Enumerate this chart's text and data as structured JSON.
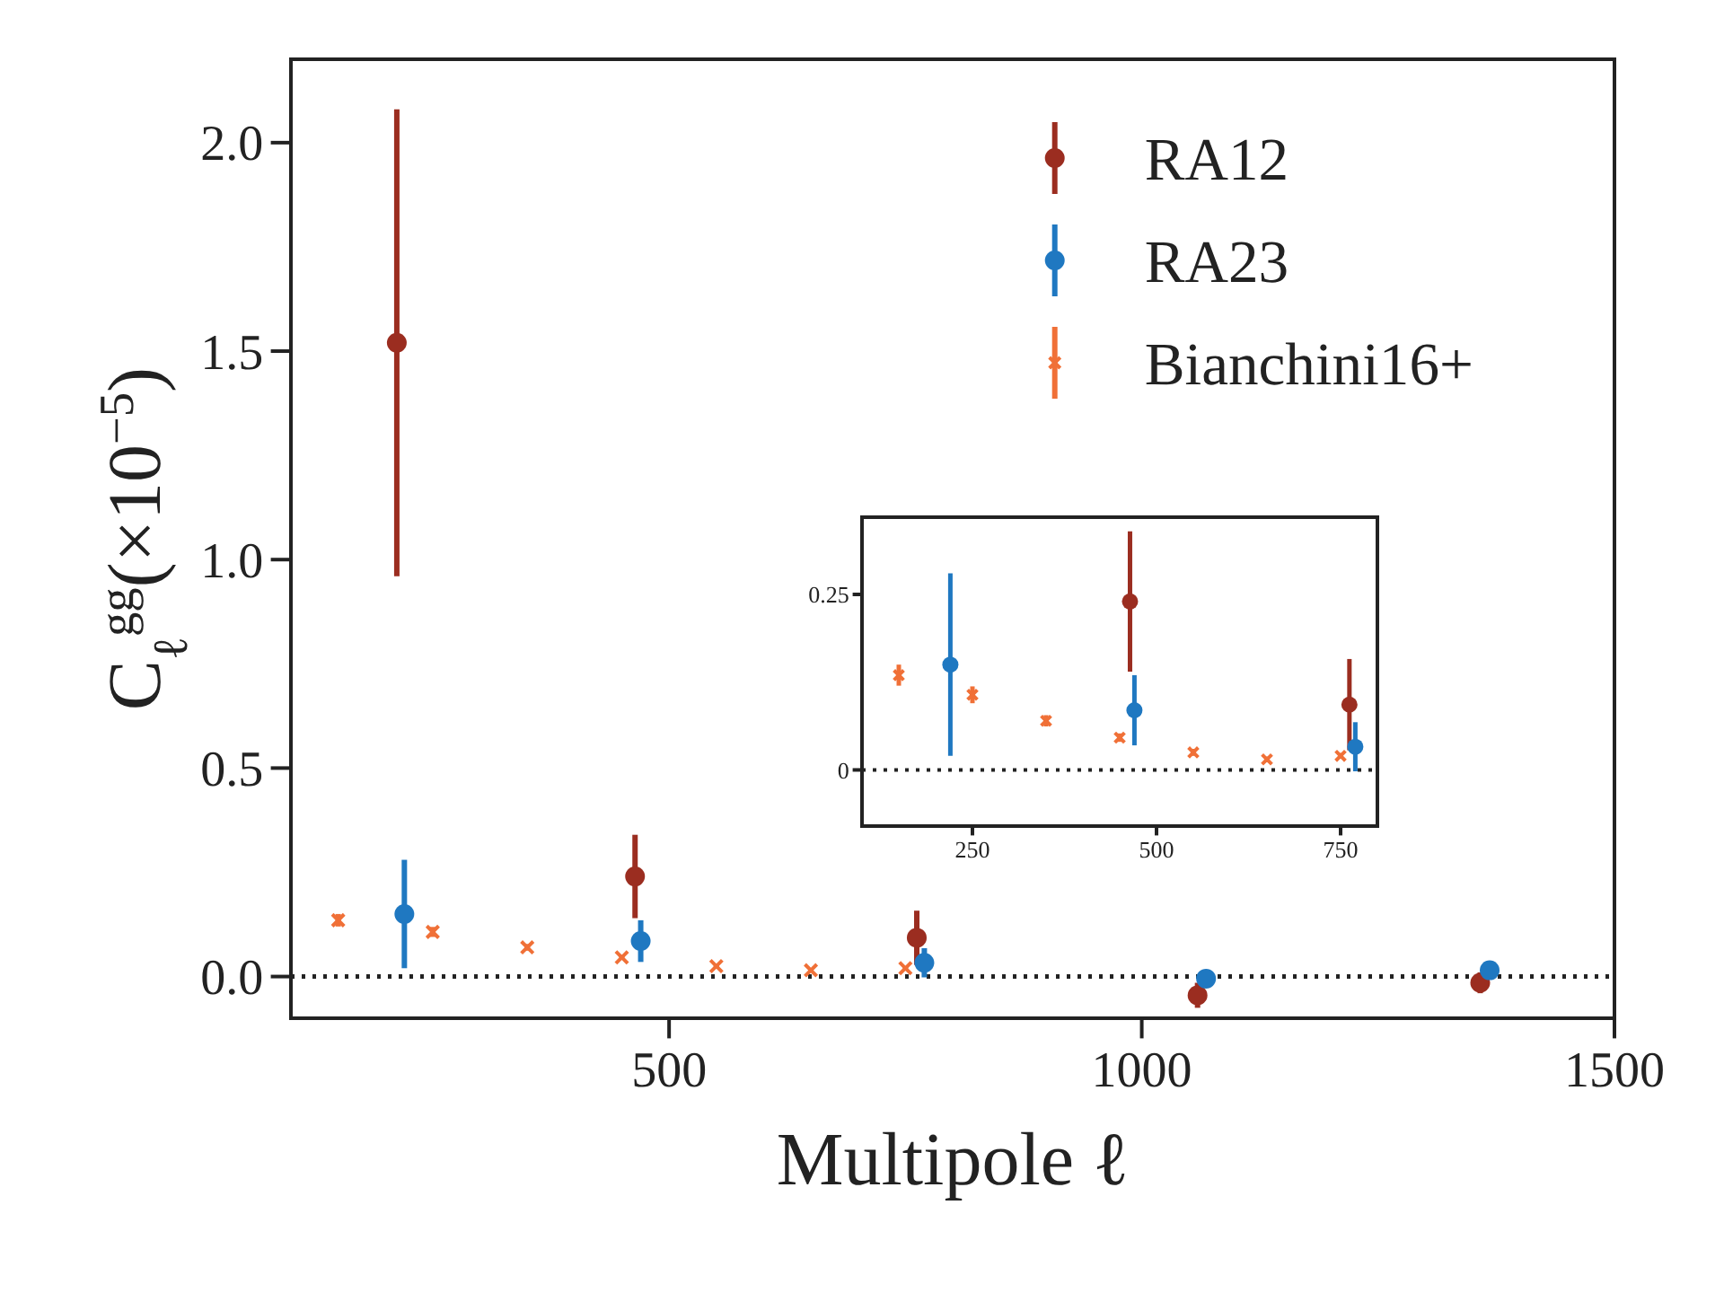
{
  "chart_data": [
    {
      "type": "scatter",
      "xlabel": "Multipole ℓ",
      "ylabel": "C$_{ℓ}$$^{gg}$(×10$^{−5}$)",
      "xlim": [
        100,
        1500
      ],
      "xticks": [
        500,
        1000,
        1500
      ],
      "ylim": [
        -0.1,
        2.2
      ],
      "yticks": [
        {
          "value": 0,
          "label": "0.0"
        },
        0.5,
        {
          "value": 1,
          "label": "1.0"
        },
        1.5,
        {
          "value": 2,
          "label": "2.0"
        }
      ],
      "grid": false,
      "legend": "top right",
      "ref_lines": [
        {
          "axis": "y",
          "value": 0,
          "line_style": "dotted",
          "color": "#222222"
        }
      ],
      "series": [
        {
          "name": "RA12",
          "color": "#9b2d20",
          "marker": "circle",
          "x": [
            212,
            464,
            762,
            1059,
            1358
          ],
          "values": [
            1.52,
            0.24,
            0.093,
            -0.045,
            -0.015
          ],
          "errors": [
            0.56,
            0.1,
            0.065,
            0.03,
            0.025
          ]
        },
        {
          "name": "RA23",
          "color": "#1f78c1",
          "marker": "circle",
          "x": [
            220,
            470,
            770,
            1068,
            1368
          ],
          "values": [
            0.15,
            0.085,
            0.033,
            -0.005,
            0.015
          ],
          "errors": [
            0.13,
            0.05,
            0.035,
            0.015,
            0.015
          ]
        },
        {
          "name": "Bianchini16+",
          "color": "#f07037",
          "marker": "cross",
          "x": [
            150,
            250,
            350,
            450,
            550,
            650,
            750
          ],
          "values": [
            0.135,
            0.107,
            0.07,
            0.046,
            0.025,
            0.015,
            0.02
          ],
          "errors": [
            0.015,
            0.012,
            0.008,
            0.006,
            0.005,
            0.004,
            0.004
          ]
        }
      ]
    },
    {
      "type": "scatter",
      "xlim": [
        100,
        800
      ],
      "xticks": [
        250,
        500,
        750
      ],
      "ylim": [
        -0.08,
        0.36
      ],
      "yticks": [
        0,
        0.25
      ],
      "grid": false,
      "ref_lines": [
        {
          "axis": "y",
          "value": 0,
          "line_style": "dotted",
          "color": "#222222"
        }
      ],
      "series": [
        {
          "color": "#9b2d20",
          "marker": "circle",
          "x": [
            464,
            762
          ],
          "values": [
            0.24,
            0.093
          ],
          "errors": [
            0.1,
            0.065
          ]
        },
        {
          "color": "#1f78c1",
          "marker": "circle",
          "x": [
            220,
            470,
            770
          ],
          "values": [
            0.15,
            0.085,
            0.033
          ],
          "errors": [
            0.13,
            0.05,
            0.035
          ]
        },
        {
          "color": "#f07037",
          "marker": "cross",
          "x": [
            150,
            250,
            350,
            450,
            550,
            650,
            750
          ],
          "values": [
            0.135,
            0.107,
            0.07,
            0.046,
            0.025,
            0.015,
            0.02
          ],
          "errors": [
            0.015,
            0.012,
            0.008,
            0.006,
            0.005,
            0.004,
            0.004
          ]
        }
      ]
    }
  ]
}
